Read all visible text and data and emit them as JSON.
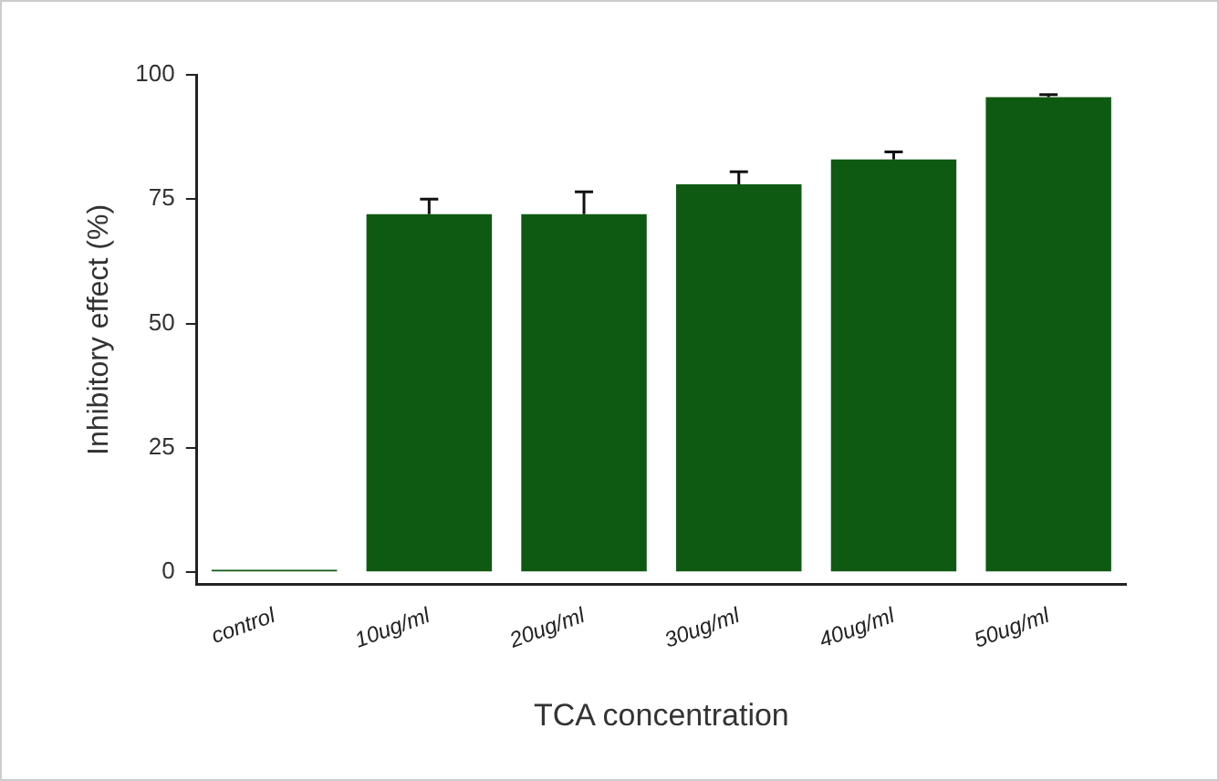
{
  "chart_data": {
    "type": "bar",
    "xlabel": "TCA concentration",
    "ylabel": "Inhibitory effect (%)",
    "categories": [
      "control",
      "10ug/ml",
      "20ug/ml",
      "30ug/ml",
      "40ug/ml",
      "50ug/ml"
    ],
    "values": [
      0.5,
      72,
      72,
      78,
      83,
      95.5
    ],
    "errors": [
      null,
      [
        72,
        75
      ],
      [
        72,
        76.5
      ],
      [
        78,
        80.5
      ],
      [
        83,
        84.5
      ],
      [
        95.5,
        96
      ]
    ],
    "color": "#0f5a12",
    "ylim": [
      -2.5,
      100
    ],
    "yticks": [
      0,
      25,
      50,
      75,
      100
    ],
    "grid": false,
    "legend": false
  }
}
